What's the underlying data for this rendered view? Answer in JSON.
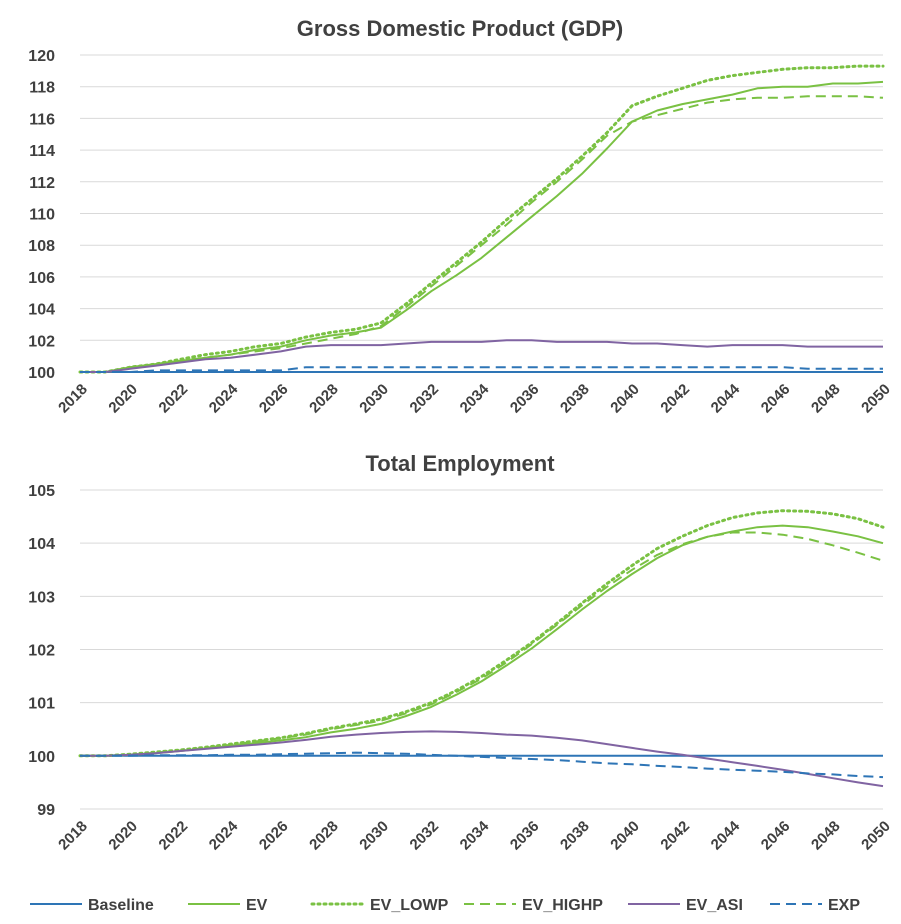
{
  "legend": [
    {
      "name": "Baseline",
      "color": "#2e75b6",
      "dash": "solid"
    },
    {
      "name": "EV",
      "color": "#7ac143",
      "dash": "solid"
    },
    {
      "name": "EV_LOWP",
      "color": "#7ac143",
      "dash": "dotted"
    },
    {
      "name": "EV_HIGHP",
      "color": "#7ac143",
      "dash": "dashed"
    },
    {
      "name": "EV_ASI",
      "color": "#8064a2",
      "dash": "solid"
    },
    {
      "name": "EXP",
      "color": "#2e75b6",
      "dash": "dashed"
    }
  ],
  "chart_data": [
    {
      "type": "line",
      "title": "Gross Domestic Product (GDP)",
      "xlabel": "",
      "ylabel": "",
      "ylim": [
        100,
        120
      ],
      "yticks": [
        100,
        102,
        104,
        106,
        108,
        110,
        112,
        114,
        116,
        118,
        120
      ],
      "grid": true,
      "x": [
        2018,
        2019,
        2020,
        2021,
        2022,
        2023,
        2024,
        2025,
        2026,
        2027,
        2028,
        2029,
        2030,
        2031,
        2032,
        2033,
        2034,
        2035,
        2036,
        2037,
        2038,
        2039,
        2040,
        2041,
        2042,
        2043,
        2044,
        2045,
        2046,
        2047,
        2048,
        2049,
        2050
      ],
      "xticks": [
        "2018",
        "2020",
        "2022",
        "2024",
        "2026",
        "2028",
        "2030",
        "2032",
        "2034",
        "2036",
        "2038",
        "2040",
        "2042",
        "2044",
        "2046",
        "2048",
        "2050"
      ],
      "series": [
        {
          "name": "Baseline",
          "values": [
            100,
            100,
            100,
            100,
            100,
            100,
            100,
            100,
            100,
            100,
            100,
            100,
            100,
            100,
            100,
            100,
            100,
            100,
            100,
            100,
            100,
            100,
            100,
            100,
            100,
            100,
            100,
            100,
            100,
            100,
            100,
            100,
            100
          ]
        },
        {
          "name": "EV",
          "values": [
            100,
            100,
            100.3,
            100.5,
            100.7,
            100.9,
            101.1,
            101.4,
            101.6,
            102.0,
            102.3,
            102.5,
            102.8,
            103.9,
            105.1,
            106.1,
            107.2,
            108.5,
            109.8,
            111.1,
            112.5,
            114.1,
            115.8,
            116.5,
            116.9,
            117.2,
            117.5,
            117.9,
            118.0,
            118.0,
            118.2,
            118.2,
            118.3
          ]
        },
        {
          "name": "EV_LOWP",
          "values": [
            100,
            100,
            100.3,
            100.5,
            100.8,
            101.1,
            101.3,
            101.6,
            101.8,
            102.2,
            102.5,
            102.7,
            103.1,
            104.3,
            105.6,
            106.9,
            108.2,
            109.6,
            110.9,
            112.2,
            113.6,
            115.1,
            116.8,
            117.4,
            117.9,
            118.4,
            118.7,
            118.9,
            119.1,
            119.2,
            119.2,
            119.3,
            119.3
          ]
        },
        {
          "name": "EV_HIGHP",
          "values": [
            100,
            100,
            100.3,
            100.5,
            100.7,
            100.9,
            101.1,
            101.3,
            101.5,
            101.8,
            102.1,
            102.4,
            102.9,
            104.1,
            105.4,
            106.7,
            108.0,
            109.3,
            110.7,
            112.0,
            113.4,
            114.9,
            115.8,
            116.2,
            116.6,
            117.0,
            117.2,
            117.3,
            117.3,
            117.4,
            117.4,
            117.4,
            117.3
          ]
        },
        {
          "name": "EV_ASI",
          "values": [
            100,
            100,
            100.2,
            100.4,
            100.6,
            100.8,
            100.9,
            101.1,
            101.3,
            101.6,
            101.7,
            101.7,
            101.7,
            101.8,
            101.9,
            101.9,
            101.9,
            102.0,
            102.0,
            101.9,
            101.9,
            101.9,
            101.8,
            101.8,
            101.7,
            101.6,
            101.7,
            101.7,
            101.7,
            101.6,
            101.6,
            101.6,
            101.6
          ]
        },
        {
          "name": "EXP",
          "values": [
            100,
            100,
            100,
            100.1,
            100.1,
            100.1,
            100.1,
            100.1,
            100.1,
            100.3,
            100.3,
            100.3,
            100.3,
            100.3,
            100.3,
            100.3,
            100.3,
            100.3,
            100.3,
            100.3,
            100.3,
            100.3,
            100.3,
            100.3,
            100.3,
            100.3,
            100.3,
            100.3,
            100.3,
            100.2,
            100.2,
            100.2,
            100.2
          ]
        }
      ]
    },
    {
      "type": "line",
      "title": "Total Employment",
      "xlabel": "",
      "ylabel": "",
      "ylim": [
        99,
        105
      ],
      "yticks": [
        99,
        100,
        101,
        102,
        103,
        104,
        105
      ],
      "grid": true,
      "x": [
        2018,
        2019,
        2020,
        2021,
        2022,
        2023,
        2024,
        2025,
        2026,
        2027,
        2028,
        2029,
        2030,
        2031,
        2032,
        2033,
        2034,
        2035,
        2036,
        2037,
        2038,
        2039,
        2040,
        2041,
        2042,
        2043,
        2044,
        2045,
        2046,
        2047,
        2048,
        2049,
        2050
      ],
      "xticks": [
        "2018",
        "2020",
        "2022",
        "2024",
        "2026",
        "2028",
        "2030",
        "2032",
        "2034",
        "2036",
        "2038",
        "2040",
        "2042",
        "2044",
        "2046",
        "2048",
        "2050"
      ],
      "series": [
        {
          "name": "Baseline",
          "values": [
            100,
            100,
            100,
            100,
            100,
            100,
            100,
            100,
            100,
            100,
            100,
            100,
            100,
            100,
            100,
            100,
            100,
            100,
            100,
            100,
            100,
            100,
            100,
            100,
            100,
            100,
            100,
            100,
            100,
            100,
            100,
            100,
            100
          ]
        },
        {
          "name": "EV",
          "values": [
            100,
            100,
            100.02,
            100.05,
            100.09,
            100.14,
            100.19,
            100.24,
            100.29,
            100.35,
            100.44,
            100.51,
            100.6,
            100.75,
            100.92,
            101.15,
            101.4,
            101.7,
            102.02,
            102.38,
            102.75,
            103.1,
            103.42,
            103.72,
            103.96,
            104.12,
            104.22,
            104.3,
            104.33,
            104.3,
            104.22,
            104.13,
            104.0
          ]
        },
        {
          "name": "EV_LOWP",
          "values": [
            100,
            100,
            100.03,
            100.07,
            100.11,
            100.16,
            100.22,
            100.28,
            100.34,
            100.42,
            100.52,
            100.6,
            100.69,
            100.83,
            101.0,
            101.23,
            101.49,
            101.8,
            102.13,
            102.49,
            102.87,
            103.24,
            103.58,
            103.9,
            104.13,
            104.33,
            104.48,
            104.57,
            104.61,
            104.6,
            104.55,
            104.46,
            104.3
          ]
        },
        {
          "name": "EV_HIGHP",
          "values": [
            100,
            100,
            100.02,
            100.06,
            100.1,
            100.15,
            100.21,
            100.27,
            100.33,
            100.4,
            100.5,
            100.58,
            100.66,
            100.8,
            100.97,
            101.2,
            101.45,
            101.76,
            102.1,
            102.46,
            102.83,
            103.18,
            103.5,
            103.78,
            103.98,
            104.12,
            104.2,
            104.2,
            104.16,
            104.08,
            103.96,
            103.82,
            103.67
          ]
        },
        {
          "name": "EV_ASI",
          "values": [
            100,
            100,
            100.02,
            100.05,
            100.09,
            100.13,
            100.17,
            100.21,
            100.25,
            100.3,
            100.36,
            100.4,
            100.43,
            100.45,
            100.46,
            100.45,
            100.43,
            100.4,
            100.38,
            100.34,
            100.29,
            100.22,
            100.15,
            100.08,
            100.02,
            99.95,
            99.88,
            99.81,
            99.74,
            99.66,
            99.58,
            99.5,
            99.43
          ]
        },
        {
          "name": "EXP",
          "values": [
            100,
            100,
            100,
            100.01,
            100.01,
            100.01,
            100.02,
            100.02,
            100.03,
            100.04,
            100.05,
            100.06,
            100.05,
            100.04,
            100.02,
            100.0,
            99.98,
            99.96,
            99.94,
            99.92,
            99.89,
            99.86,
            99.84,
            99.81,
            99.79,
            99.76,
            99.74,
            99.72,
            99.7,
            99.67,
            99.65,
            99.62,
            99.6
          ]
        }
      ]
    }
  ]
}
